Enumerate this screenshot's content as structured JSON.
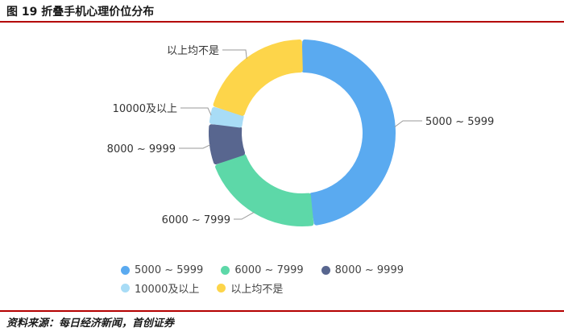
{
  "figure": {
    "title": "图 19  折叠手机心理价位分布",
    "source": "资料来源：每日经济新闻，首创证券"
  },
  "chart_data": {
    "type": "pie",
    "series": [
      {
        "name": "5000 ~ 5999",
        "value": 47,
        "color": "#5aaaf0"
      },
      {
        "name": "6000 ~ 7999",
        "value": 21,
        "color": "#5dd8a8"
      },
      {
        "name": "8000 ~ 9999",
        "value": 7,
        "color": "#58668f"
      },
      {
        "name": "10000及以上",
        "value": 3,
        "color": "#a8dcf6"
      },
      {
        "name": "以上均不是",
        "value": 20,
        "color": "#fdd54a"
      }
    ],
    "legend_position": "bottom"
  }
}
